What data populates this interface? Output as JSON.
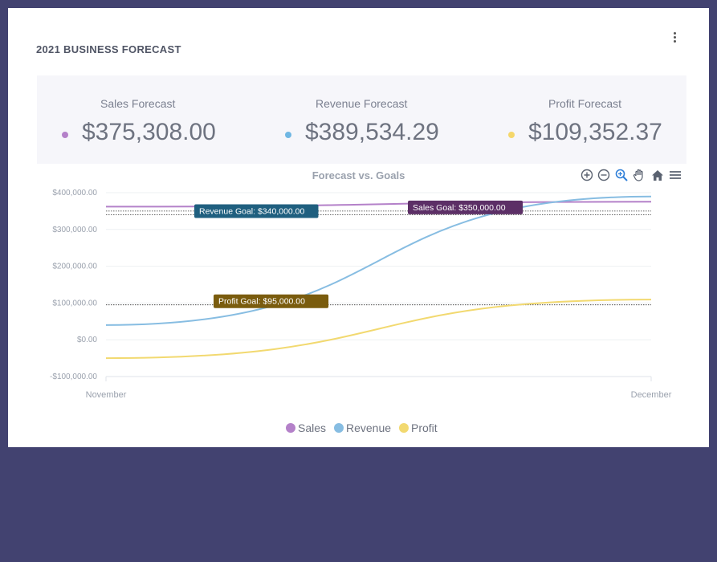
{
  "widget": {
    "title": "2021 BUSINESS FORECAST",
    "menu_icon": "kebab-menu-icon"
  },
  "summary": [
    {
      "label": "Sales Forecast",
      "value": "$375,308.00",
      "color": "#b481c9"
    },
    {
      "label": "Revenue Forecast",
      "value": "$389,534.29",
      "color": "#6fb7e3"
    },
    {
      "label": "Profit Forecast",
      "value": "$109,352.37",
      "color": "#f5d76b"
    }
  ],
  "toolbar": {
    "icons": [
      "zoom-in-icon",
      "zoom-out-icon",
      "selection-zoom-icon",
      "pan-hand-icon",
      "reset-home-icon",
      "hamburger-menu-icon"
    ]
  },
  "chart_data": {
    "type": "line",
    "title": "Forecast vs. Goals",
    "x_categories": [
      "November",
      "December"
    ],
    "ylim": [
      -100000,
      400000
    ],
    "y_ticks": [
      -100000,
      0,
      100000,
      200000,
      300000,
      400000
    ],
    "y_tick_labels": [
      "-$100,000.00",
      "$0.00",
      "$100,000.00",
      "$200,000.00",
      "$300,000.00",
      "$400,000.00"
    ],
    "grid": true,
    "legend_position": "bottom",
    "series": [
      {
        "name": "Sales",
        "color": "#b481c9",
        "start": 362000,
        "end": 375308
      },
      {
        "name": "Revenue",
        "color": "#87bde2",
        "start": 40000,
        "end": 389534.29
      },
      {
        "name": "Profit",
        "color": "#f2d970",
        "start": -50000,
        "end": 109352.37
      }
    ],
    "annotations": [
      {
        "text": "Revenue Goal: $340,000.00",
        "y": 340000,
        "color": "#1f5f7f"
      },
      {
        "text": "Sales Goal: $350,000.00",
        "y": 350000,
        "color": "#5c2f66"
      },
      {
        "text": "Profit Goal: $95,000.00",
        "y": 95000,
        "color": "#7a5c0e"
      }
    ]
  }
}
